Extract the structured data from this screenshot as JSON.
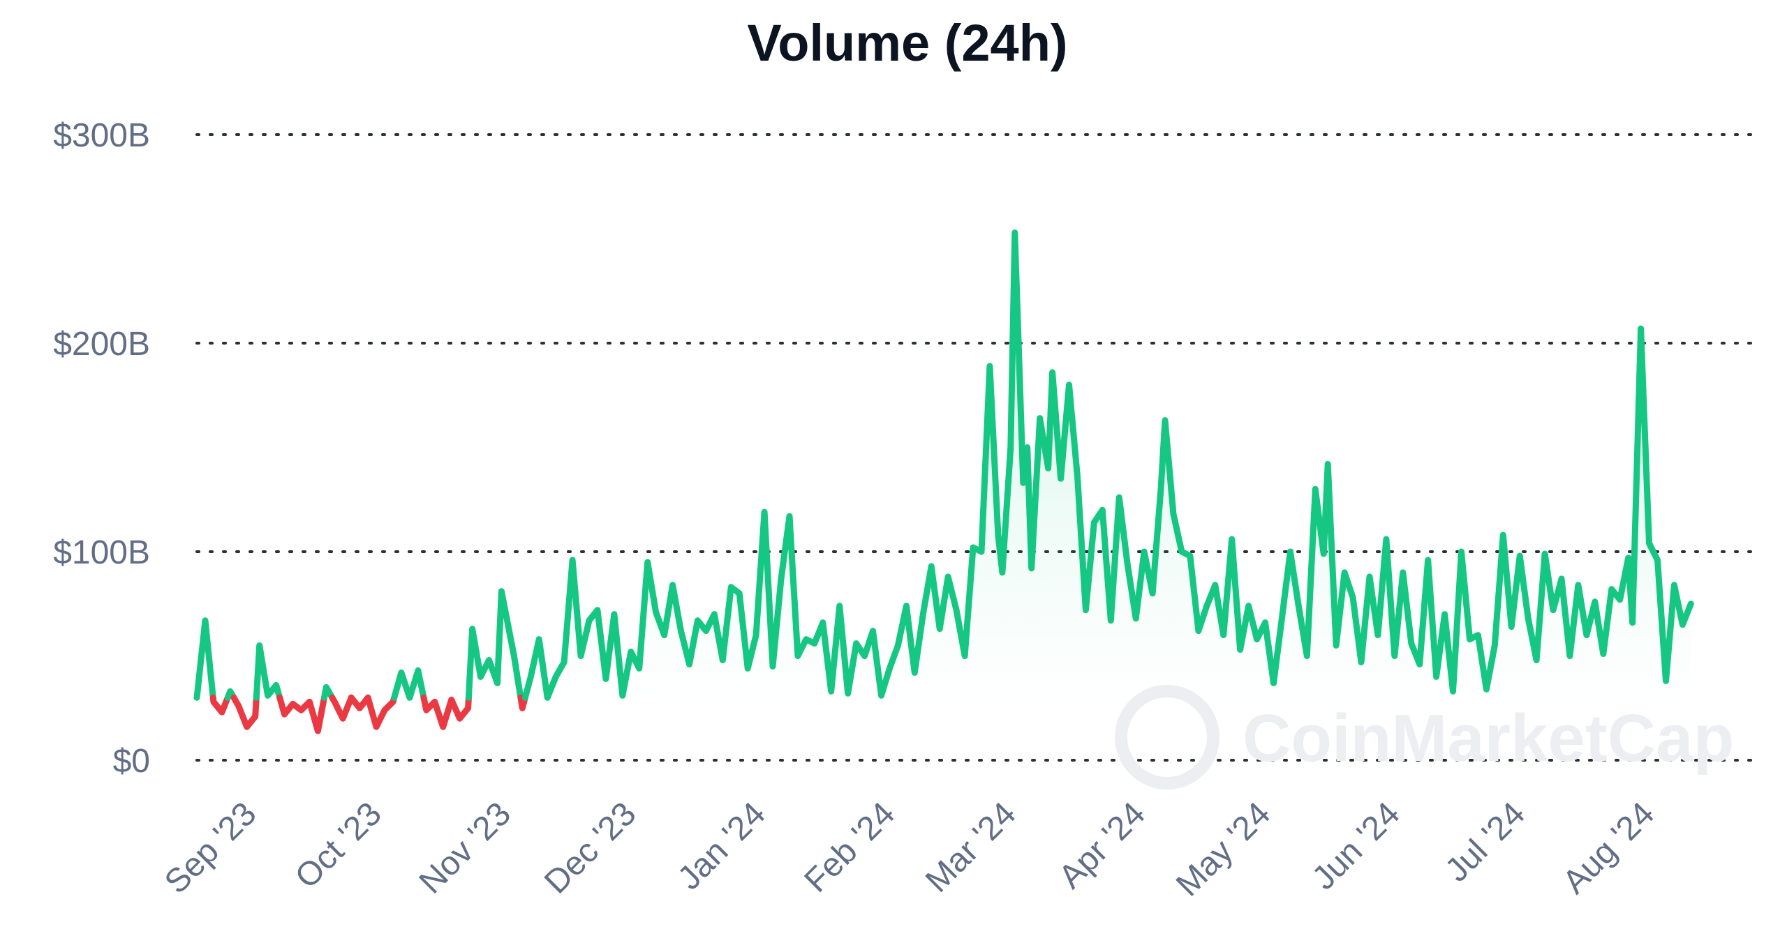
{
  "watermark": "CoinMarketCap",
  "colors": {
    "up": "#16c784",
    "down": "#ea3943",
    "text": "#616e85",
    "title": "#0d1421"
  },
  "chart_data": {
    "type": "line",
    "title": "Volume (24h)",
    "xlabel": "",
    "ylabel": "",
    "ylim": [
      0,
      300
    ],
    "y_unit": "billions USD",
    "yticks": [
      {
        "value": 0,
        "label": "$0"
      },
      {
        "value": 100,
        "label": "$100B"
      },
      {
        "value": 200,
        "label": "$200B"
      },
      {
        "value": 300,
        "label": "$300B"
      }
    ],
    "x_start": "2023-08-20",
    "x_end": "2024-08-27",
    "xticks": [
      {
        "date": "2023-09-01",
        "label": "Sep '23"
      },
      {
        "date": "2023-10-01",
        "label": "Oct '23"
      },
      {
        "date": "2023-11-01",
        "label": "Nov '23"
      },
      {
        "date": "2023-12-01",
        "label": "Dec '23"
      },
      {
        "date": "2024-01-01",
        "label": "Jan '24"
      },
      {
        "date": "2024-02-01",
        "label": "Feb '24"
      },
      {
        "date": "2024-03-01",
        "label": "Mar '24"
      },
      {
        "date": "2024-04-01",
        "label": "Apr '24"
      },
      {
        "date": "2024-05-01",
        "label": "May '24"
      },
      {
        "date": "2024-06-01",
        "label": "Jun '24"
      },
      {
        "date": "2024-07-01",
        "label": "Jul '24"
      },
      {
        "date": "2024-08-01",
        "label": "Aug '24"
      }
    ],
    "baseline": 30,
    "grid": true,
    "series": [
      {
        "points": [
          [
            "2023-08-20",
            30
          ],
          [
            "2023-08-22",
            67
          ],
          [
            "2023-08-24",
            28
          ],
          [
            "2023-08-26",
            23
          ],
          [
            "2023-08-28",
            33
          ],
          [
            "2023-08-30",
            26
          ],
          [
            "2023-09-01",
            16
          ],
          [
            "2023-09-03",
            21
          ],
          [
            "2023-09-04",
            55
          ],
          [
            "2023-09-06",
            31
          ],
          [
            "2023-09-08",
            36
          ],
          [
            "2023-09-10",
            22
          ],
          [
            "2023-09-12",
            27
          ],
          [
            "2023-09-14",
            24
          ],
          [
            "2023-09-16",
            28
          ],
          [
            "2023-09-18",
            14
          ],
          [
            "2023-09-20",
            35
          ],
          [
            "2023-09-22",
            28
          ],
          [
            "2023-09-24",
            20
          ],
          [
            "2023-09-26",
            30
          ],
          [
            "2023-09-28",
            25
          ],
          [
            "2023-09-30",
            30
          ],
          [
            "2023-10-02",
            16
          ],
          [
            "2023-10-04",
            24
          ],
          [
            "2023-10-06",
            28
          ],
          [
            "2023-10-08",
            42
          ],
          [
            "2023-10-10",
            30
          ],
          [
            "2023-10-12",
            43
          ],
          [
            "2023-10-14",
            24
          ],
          [
            "2023-10-16",
            28
          ],
          [
            "2023-10-18",
            16
          ],
          [
            "2023-10-20",
            29
          ],
          [
            "2023-10-22",
            20
          ],
          [
            "2023-10-24",
            25
          ],
          [
            "2023-10-25",
            63
          ],
          [
            "2023-10-27",
            40
          ],
          [
            "2023-10-29",
            48
          ],
          [
            "2023-10-31",
            37
          ],
          [
            "2023-11-01",
            81
          ],
          [
            "2023-11-04",
            50
          ],
          [
            "2023-11-06",
            25
          ],
          [
            "2023-11-08",
            40
          ],
          [
            "2023-11-10",
            58
          ],
          [
            "2023-11-12",
            30
          ],
          [
            "2023-11-14",
            40
          ],
          [
            "2023-11-16",
            47
          ],
          [
            "2023-11-18",
            96
          ],
          [
            "2023-11-20",
            50
          ],
          [
            "2023-11-22",
            67
          ],
          [
            "2023-11-24",
            72
          ],
          [
            "2023-11-26",
            39
          ],
          [
            "2023-11-28",
            70
          ],
          [
            "2023-11-30",
            31
          ],
          [
            "2023-12-02",
            52
          ],
          [
            "2023-12-04",
            44
          ],
          [
            "2023-12-06",
            95
          ],
          [
            "2023-12-08",
            71
          ],
          [
            "2023-12-10",
            60
          ],
          [
            "2023-12-12",
            84
          ],
          [
            "2023-12-14",
            62
          ],
          [
            "2023-12-16",
            46
          ],
          [
            "2023-12-18",
            67
          ],
          [
            "2023-12-20",
            62
          ],
          [
            "2023-12-22",
            70
          ],
          [
            "2023-12-24",
            48
          ],
          [
            "2023-12-26",
            83
          ],
          [
            "2023-12-28",
            80
          ],
          [
            "2023-12-30",
            44
          ],
          [
            "2024-01-01",
            60
          ],
          [
            "2024-01-03",
            119
          ],
          [
            "2024-01-05",
            45
          ],
          [
            "2024-01-07",
            87
          ],
          [
            "2024-01-09",
            117
          ],
          [
            "2024-01-11",
            50
          ],
          [
            "2024-01-13",
            58
          ],
          [
            "2024-01-15",
            56
          ],
          [
            "2024-01-17",
            66
          ],
          [
            "2024-01-19",
            33
          ],
          [
            "2024-01-21",
            74
          ],
          [
            "2024-01-23",
            32
          ],
          [
            "2024-01-25",
            56
          ],
          [
            "2024-01-27",
            50
          ],
          [
            "2024-01-29",
            62
          ],
          [
            "2024-01-31",
            31
          ],
          [
            "2024-02-02",
            44
          ],
          [
            "2024-02-04",
            55
          ],
          [
            "2024-02-06",
            74
          ],
          [
            "2024-02-08",
            42
          ],
          [
            "2024-02-10",
            70
          ],
          [
            "2024-02-12",
            93
          ],
          [
            "2024-02-14",
            63
          ],
          [
            "2024-02-16",
            88
          ],
          [
            "2024-02-18",
            72
          ],
          [
            "2024-02-20",
            50
          ],
          [
            "2024-02-22",
            102
          ],
          [
            "2024-02-24",
            100
          ],
          [
            "2024-02-26",
            189
          ],
          [
            "2024-02-28",
            108
          ],
          [
            "2024-02-29",
            90
          ],
          [
            "2024-03-02",
            150
          ],
          [
            "2024-03-03",
            253
          ],
          [
            "2024-03-05",
            133
          ],
          [
            "2024-03-06",
            150
          ],
          [
            "2024-03-07",
            92
          ],
          [
            "2024-03-09",
            164
          ],
          [
            "2024-03-11",
            140
          ],
          [
            "2024-03-12",
            186
          ],
          [
            "2024-03-14",
            135
          ],
          [
            "2024-03-16",
            180
          ],
          [
            "2024-03-18",
            136
          ],
          [
            "2024-03-20",
            72
          ],
          [
            "2024-03-22",
            114
          ],
          [
            "2024-03-24",
            120
          ],
          [
            "2024-03-26",
            67
          ],
          [
            "2024-03-28",
            126
          ],
          [
            "2024-03-30",
            94
          ],
          [
            "2024-04-01",
            68
          ],
          [
            "2024-04-03",
            100
          ],
          [
            "2024-04-05",
            80
          ],
          [
            "2024-04-07",
            130
          ],
          [
            "2024-04-08",
            163
          ],
          [
            "2024-04-10",
            118
          ],
          [
            "2024-04-12",
            100
          ],
          [
            "2024-04-14",
            98
          ],
          [
            "2024-04-16",
            62
          ],
          [
            "2024-04-18",
            74
          ],
          [
            "2024-04-20",
            84
          ],
          [
            "2024-04-22",
            60
          ],
          [
            "2024-04-24",
            106
          ],
          [
            "2024-04-26",
            53
          ],
          [
            "2024-04-28",
            74
          ],
          [
            "2024-04-30",
            58
          ],
          [
            "2024-05-02",
            66
          ],
          [
            "2024-05-04",
            37
          ],
          [
            "2024-05-06",
            68
          ],
          [
            "2024-05-08",
            100
          ],
          [
            "2024-05-10",
            74
          ],
          [
            "2024-05-12",
            50
          ],
          [
            "2024-05-14",
            130
          ],
          [
            "2024-05-16",
            99
          ],
          [
            "2024-05-17",
            142
          ],
          [
            "2024-05-19",
            55
          ],
          [
            "2024-05-21",
            90
          ],
          [
            "2024-05-23",
            78
          ],
          [
            "2024-05-25",
            47
          ],
          [
            "2024-05-27",
            88
          ],
          [
            "2024-05-29",
            60
          ],
          [
            "2024-05-31",
            106
          ],
          [
            "2024-06-02",
            50
          ],
          [
            "2024-06-04",
            90
          ],
          [
            "2024-06-06",
            56
          ],
          [
            "2024-06-08",
            46
          ],
          [
            "2024-06-10",
            96
          ],
          [
            "2024-06-12",
            40
          ],
          [
            "2024-06-14",
            70
          ],
          [
            "2024-06-16",
            33
          ],
          [
            "2024-06-18",
            100
          ],
          [
            "2024-06-20",
            58
          ],
          [
            "2024-06-22",
            60
          ],
          [
            "2024-06-24",
            34
          ],
          [
            "2024-06-26",
            55
          ],
          [
            "2024-06-28",
            108
          ],
          [
            "2024-06-30",
            64
          ],
          [
            "2024-07-02",
            98
          ],
          [
            "2024-07-04",
            68
          ],
          [
            "2024-07-06",
            48
          ],
          [
            "2024-07-08",
            99
          ],
          [
            "2024-07-10",
            72
          ],
          [
            "2024-07-12",
            87
          ],
          [
            "2024-07-14",
            50
          ],
          [
            "2024-07-16",
            84
          ],
          [
            "2024-07-18",
            60
          ],
          [
            "2024-07-20",
            76
          ],
          [
            "2024-07-22",
            51
          ],
          [
            "2024-07-24",
            82
          ],
          [
            "2024-07-26",
            77
          ],
          [
            "2024-07-28",
            97
          ],
          [
            "2024-07-29",
            66
          ],
          [
            "2024-07-31",
            207
          ],
          [
            "2024-08-02",
            104
          ],
          [
            "2024-08-04",
            96
          ],
          [
            "2024-08-06",
            38
          ],
          [
            "2024-08-08",
            84
          ],
          [
            "2024-08-10",
            65
          ],
          [
            "2024-08-12",
            75
          ]
        ]
      }
    ]
  }
}
